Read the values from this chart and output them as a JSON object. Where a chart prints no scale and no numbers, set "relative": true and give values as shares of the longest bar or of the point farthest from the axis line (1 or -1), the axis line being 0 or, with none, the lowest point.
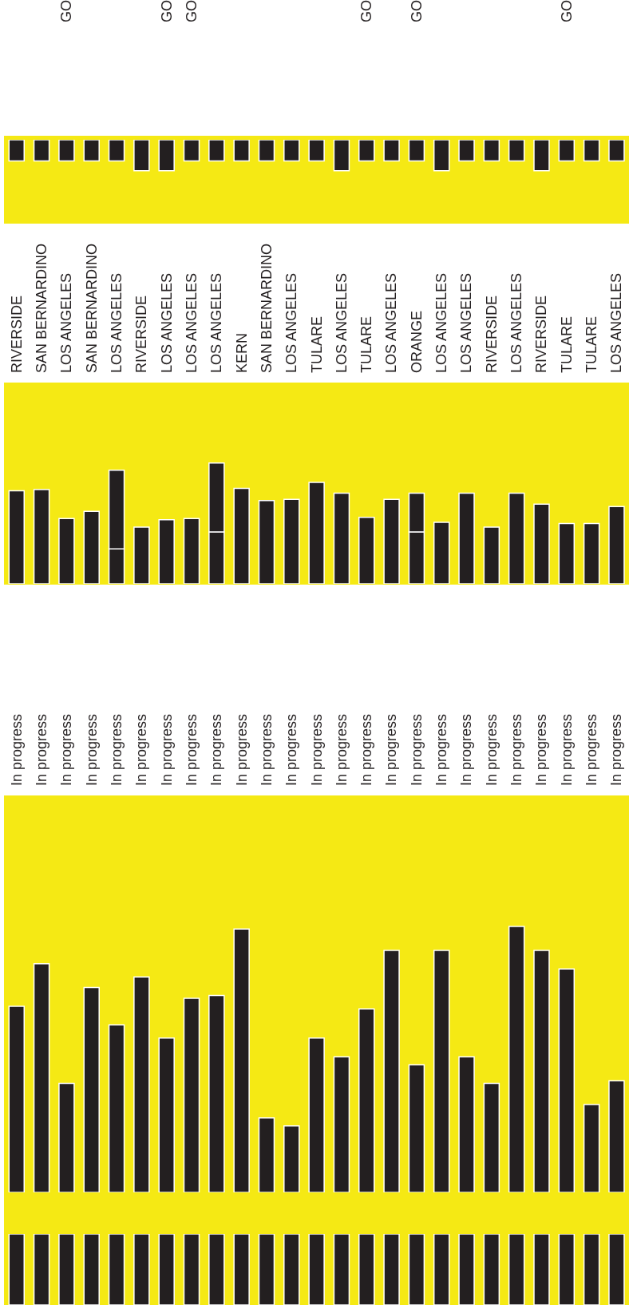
{
  "chart_data": [
    {
      "type": "bar",
      "relative": true,
      "categories": [
        null,
        null,
        "GO",
        null,
        null,
        null,
        "GO",
        "GO",
        null,
        null,
        null,
        null,
        null,
        null,
        "GO",
        null,
        "GO",
        null,
        null,
        null,
        null,
        null,
        "GO",
        null,
        null
      ],
      "values": [
        -0.68,
        -0.68,
        -0.68,
        -0.68,
        -0.68,
        -1,
        -1,
        -0.68,
        -0.68,
        -0.68,
        -0.68,
        -0.68,
        -0.68,
        -1,
        -0.68,
        -0.68,
        -0.68,
        -1,
        -0.68,
        -0.68,
        -0.68,
        -1,
        -0.68,
        -0.68,
        -0.68
      ],
      "color": "#231f20"
    },
    {
      "type": "bar",
      "relative": true,
      "stacked": true,
      "categories": [
        "RIVERSIDE",
        "SAN BERNARDINO",
        "LOS ANGELES",
        "SAN BERNARDINO",
        "LOS ANGELES",
        "RIVERSIDE",
        "LOS ANGELES",
        "LOS ANGELES",
        "LOS ANGELES",
        "KERN",
        "SAN BERNARDINO",
        "LOS ANGELES",
        "TULARE",
        "LOS ANGELES",
        "TULARE",
        "LOS ANGELES",
        "ORANGE",
        "LOS ANGELES",
        "LOS ANGELES",
        "RIVERSIDE",
        "LOS ANGELES",
        "RIVERSIDE",
        "TULARE",
        "TULARE",
        "LOS ANGELES"
      ],
      "series": [
        {
          "color": "#231f20",
          "values": [
            0.77,
            0.78,
            0.54,
            0.6,
            0.29,
            0.47,
            0.53,
            0.54,
            0.43,
            0.79,
            0.69,
            0.7,
            0.84,
            0.75,
            0.55,
            0.7,
            0.43,
            0.51,
            0.75,
            0.47,
            0.75,
            0.66,
            0.5,
            0.5,
            0.64
          ]
        },
        {
          "color": "#231f20",
          "values": [
            null,
            null,
            null,
            null,
            0.65,
            null,
            null,
            null,
            0.57,
            null,
            null,
            null,
            null,
            null,
            null,
            null,
            0.32,
            null,
            null,
            null,
            null,
            null,
            null,
            null,
            null
          ]
        }
      ]
    },
    {
      "type": "bar",
      "relative": true,
      "categories": [
        "In progress",
        "In progress",
        "In progress",
        "In progress",
        "In progress",
        "In progress",
        "In progress",
        "In progress",
        "In progress",
        "In progress",
        "In progress",
        "In progress",
        "In progress",
        "In progress",
        "In progress",
        "In progress",
        "In progress",
        "In progress",
        "In progress",
        "In progress",
        "In progress",
        "In progress",
        "In progress",
        "In progress",
        "In progress"
      ],
      "values": [
        0.7,
        0.86,
        0.41,
        0.77,
        0.63,
        0.81,
        0.58,
        0.73,
        0.74,
        0.99,
        0.28,
        0.25,
        0.58,
        0.51,
        0.69,
        0.91,
        0.48,
        0.91,
        0.51,
        0.41,
        1,
        0.91,
        0.84,
        0.33,
        0.42
      ],
      "color": "#231f20"
    },
    {
      "type": "bar",
      "relative": true,
      "categories": [
        null,
        null,
        null,
        null,
        null,
        null,
        null,
        null,
        null,
        null,
        null,
        null,
        null,
        null,
        null,
        null,
        null,
        null,
        null,
        null,
        null,
        null,
        null,
        null,
        null
      ],
      "values": [
        -1,
        -1,
        -1,
        -1,
        -1,
        -1,
        -1,
        -1,
        -1,
        -1,
        -1,
        -1,
        -1,
        -1,
        -1,
        -1,
        -1,
        -1,
        -1,
        -1,
        -1,
        -1,
        -1,
        -1,
        -1
      ],
      "color": "#231f20"
    }
  ]
}
